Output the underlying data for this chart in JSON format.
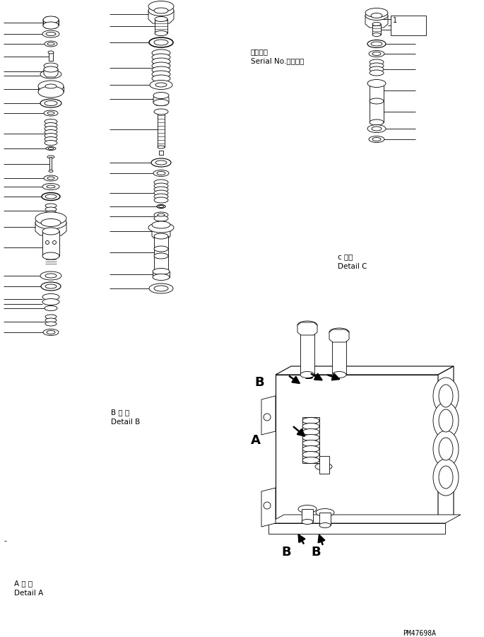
{
  "bg_color": "#ffffff",
  "line_color": "#000000",
  "text_color": "#000000",
  "title_bottom_right": "PM47698A",
  "label_a_jp": "A 詳 細",
  "label_a_en": "Detail A",
  "label_b_jp": "B 詳 細",
  "label_b_en": "Detail B",
  "label_c_jp": "c 詳細",
  "label_c_en": "Detail C",
  "serial_jp": "適用号機",
  "serial_en": "Serial No.　・　〜"
}
